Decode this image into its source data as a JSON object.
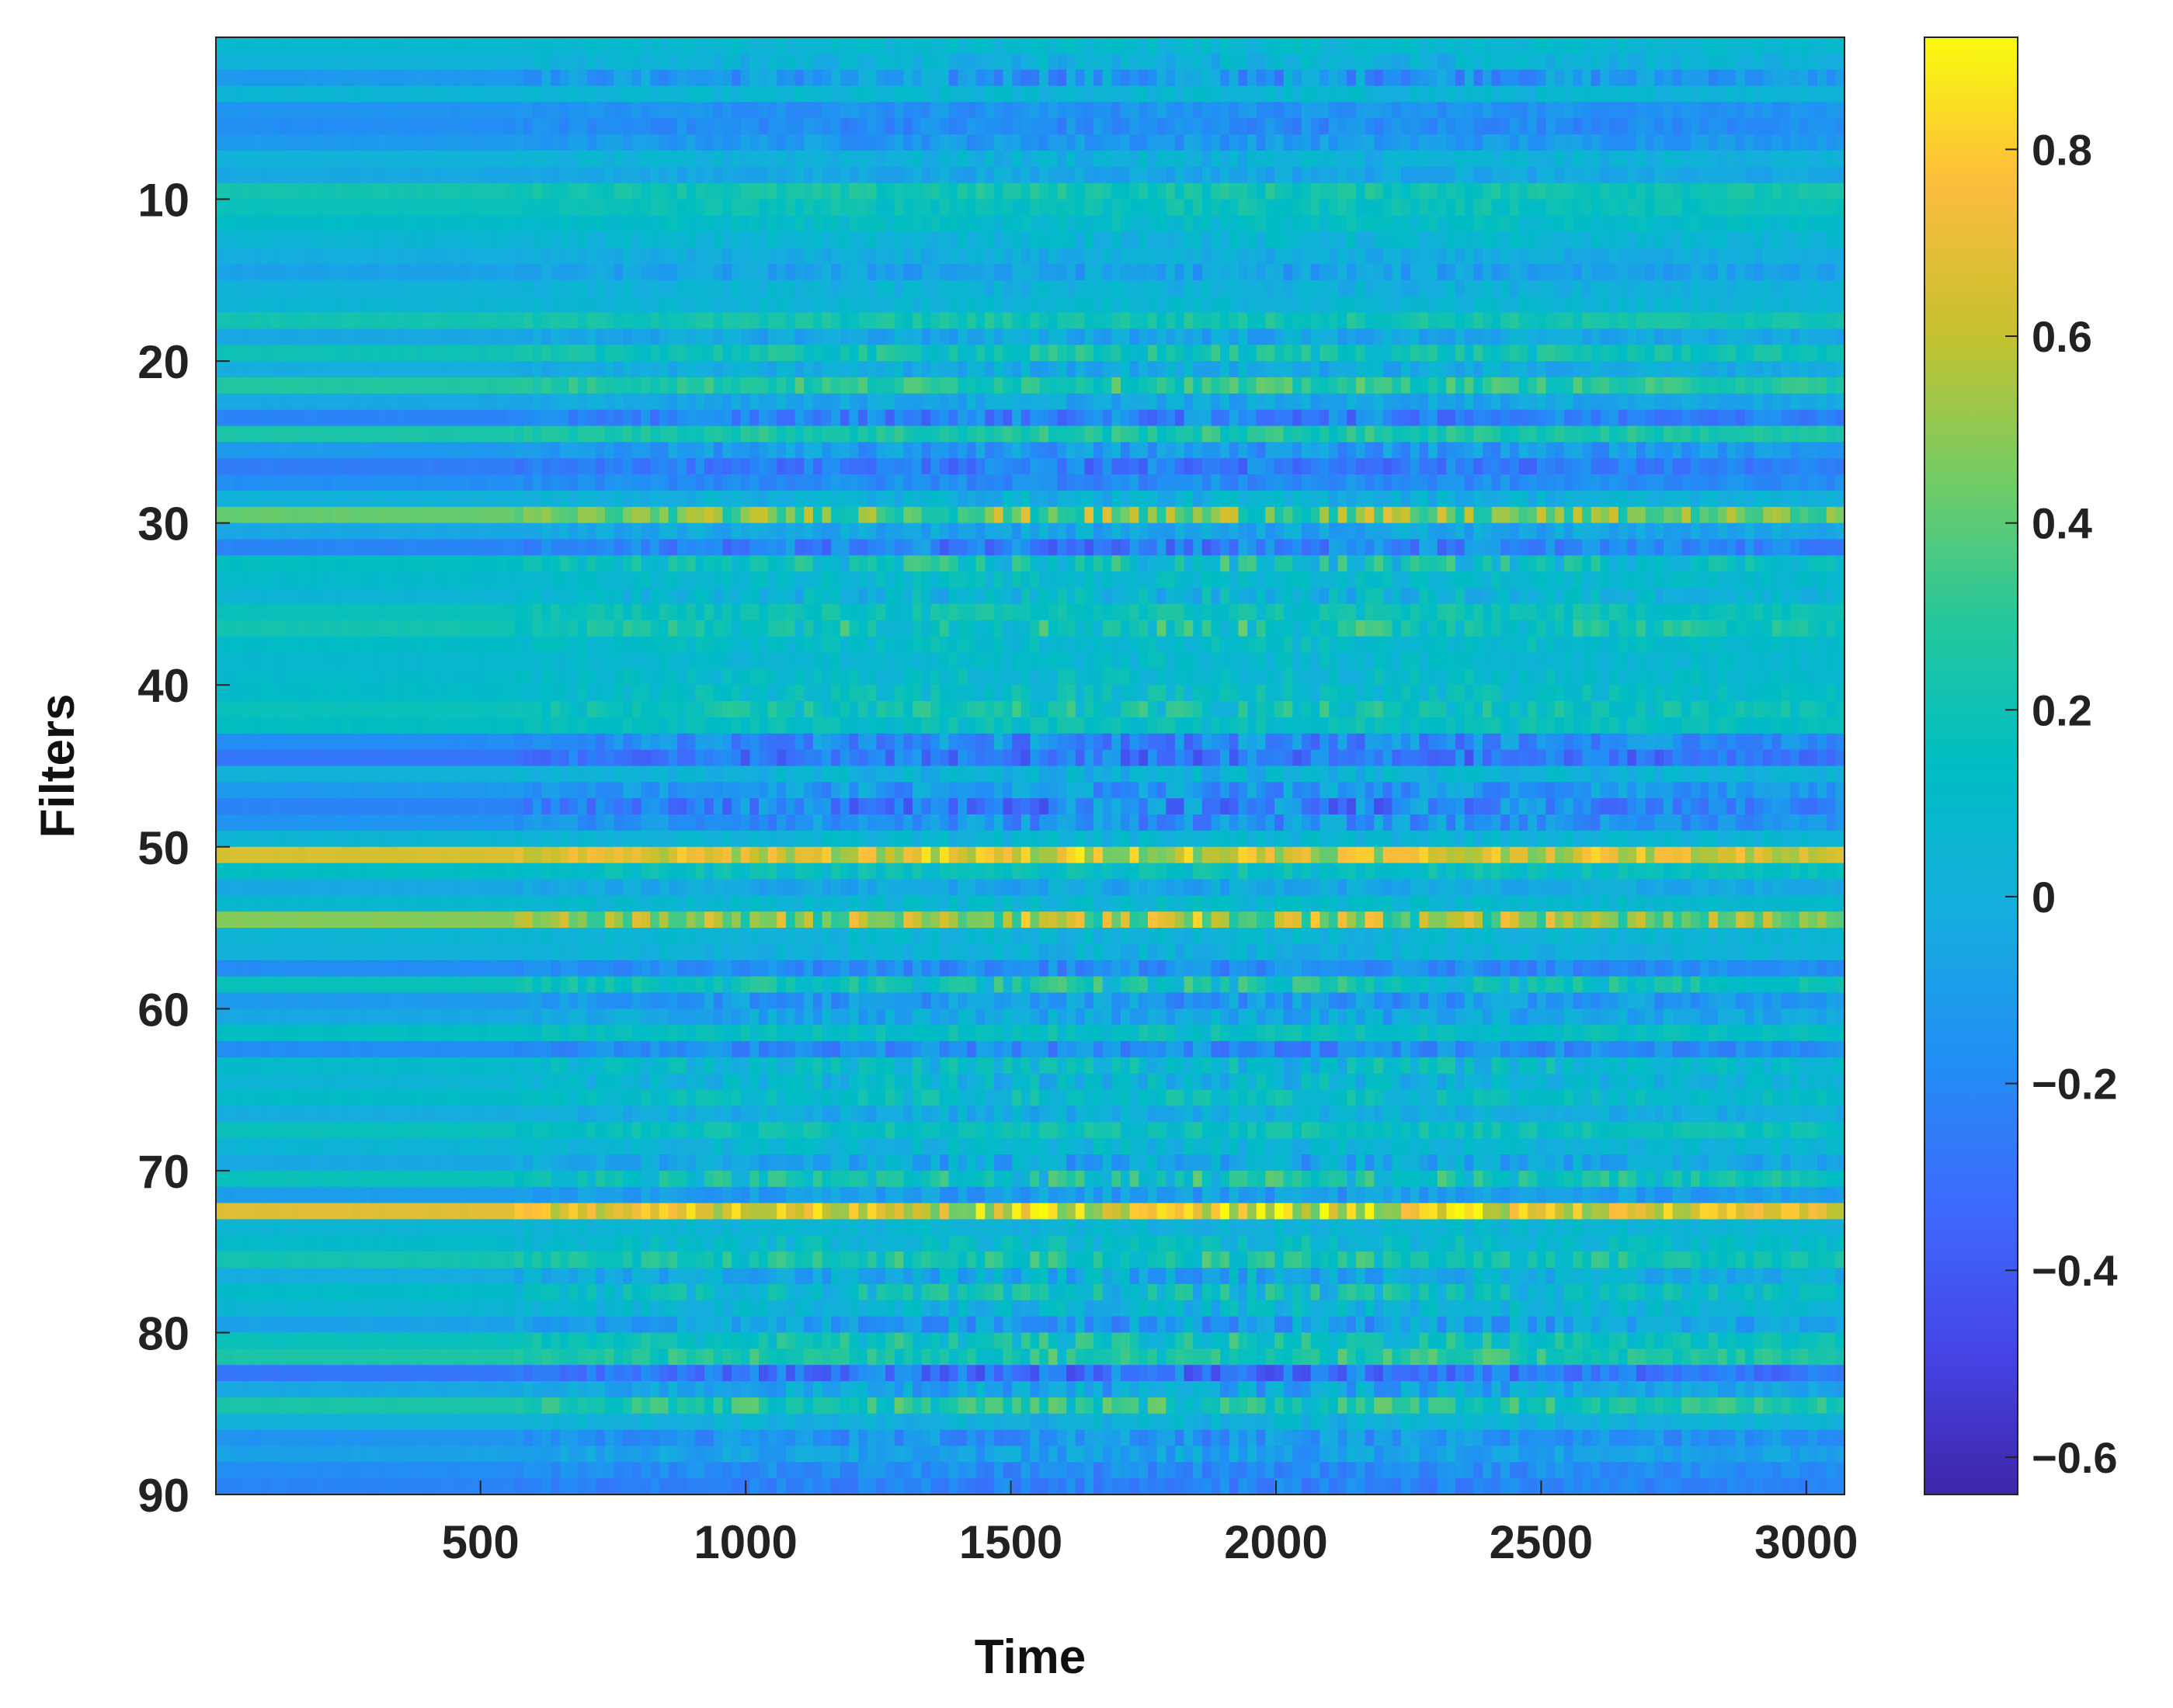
{
  "chart_data": {
    "type": "heatmap",
    "xlabel": "Time",
    "ylabel": "Filters",
    "xlim": [
      1,
      3072
    ],
    "ylim": [
      1,
      90
    ],
    "y_reversed": true,
    "x_ticks": [
      500,
      1000,
      1500,
      2000,
      2500,
      3000
    ],
    "x_tick_labels": [
      "500",
      "1000",
      "1500",
      "2000",
      "2500",
      "3000"
    ],
    "y_ticks": [
      10,
      20,
      30,
      40,
      50,
      60,
      70,
      80,
      90
    ],
    "y_tick_labels": [
      "10",
      "20",
      "30",
      "40",
      "50",
      "60",
      "70",
      "80",
      "90"
    ],
    "colorbar": {
      "colormap": "parula",
      "range": [
        -0.64,
        0.92
      ],
      "ticks": [
        0.8,
        0.6,
        0.4,
        0.2,
        0,
        -0.2,
        -0.4,
        -0.6
      ],
      "tick_labels": [
        "0.8",
        "0.6",
        "0.4",
        "0.2",
        "0",
        "−0.2",
        "−0.4",
        "−0.6"
      ]
    },
    "activity_onset_time": 560,
    "row_baseline_values": [
      0.08,
      0.02,
      -0.12,
      0.05,
      -0.15,
      -0.18,
      -0.12,
      0.02,
      -0.05,
      0.22,
      0.18,
      0.12,
      0.05,
      -0.02,
      -0.08,
      0.02,
      0.05,
      0.22,
      -0.05,
      0.2,
      -0.02,
      0.28,
      -0.05,
      -0.22,
      0.25,
      -0.12,
      -0.25,
      -0.18,
      0.02,
      0.42,
      -0.05,
      -0.22,
      0.15,
      0.1,
      0.05,
      0.18,
      0.22,
      0.12,
      0.08,
      0.1,
      0.12,
      0.18,
      0.15,
      -0.18,
      -0.28,
      0.02,
      -0.12,
      -0.22,
      -0.15,
      0.05,
      0.65,
      0.15,
      -0.05,
      0.08,
      0.48,
      0.05,
      0.02,
      -0.18,
      0.18,
      -0.12,
      -0.05,
      0.15,
      -0.18,
      0.1,
      0.05,
      0.12,
      -0.02,
      0.18,
      0.05,
      -0.05,
      0.18,
      -0.1,
      0.68,
      0.05,
      0.1,
      0.22,
      -0.02,
      0.12,
      0.05,
      -0.08,
      0.18,
      0.25,
      -0.28,
      -0.05,
      0.25,
      0.02,
      -0.15,
      -0.08,
      -0.18,
      -0.22
    ],
    "row_fluctuation_amplitude": [
      0.08,
      0.12,
      0.2,
      0.08,
      0.08,
      0.1,
      0.1,
      0.1,
      0.08,
      0.1,
      0.08,
      0.08,
      0.1,
      0.08,
      0.12,
      0.1,
      0.08,
      0.1,
      0.12,
      0.15,
      0.12,
      0.15,
      0.1,
      0.18,
      0.12,
      0.15,
      0.15,
      0.1,
      0.12,
      0.3,
      0.12,
      0.2,
      0.25,
      0.1,
      0.18,
      0.12,
      0.22,
      0.1,
      0.1,
      0.12,
      0.15,
      0.18,
      0.1,
      0.2,
      0.2,
      0.12,
      0.18,
      0.25,
      0.18,
      0.1,
      0.25,
      0.12,
      0.1,
      0.1,
      0.35,
      0.1,
      0.1,
      0.12,
      0.22,
      0.15,
      0.15,
      0.1,
      0.15,
      0.2,
      0.18,
      0.15,
      0.12,
      0.1,
      0.12,
      0.18,
      0.25,
      0.12,
      0.28,
      0.1,
      0.15,
      0.18,
      0.2,
      0.22,
      0.15,
      0.2,
      0.2,
      0.18,
      0.2,
      0.18,
      0.22,
      0.1,
      0.15,
      0.12,
      0.1,
      0.1
    ]
  }
}
